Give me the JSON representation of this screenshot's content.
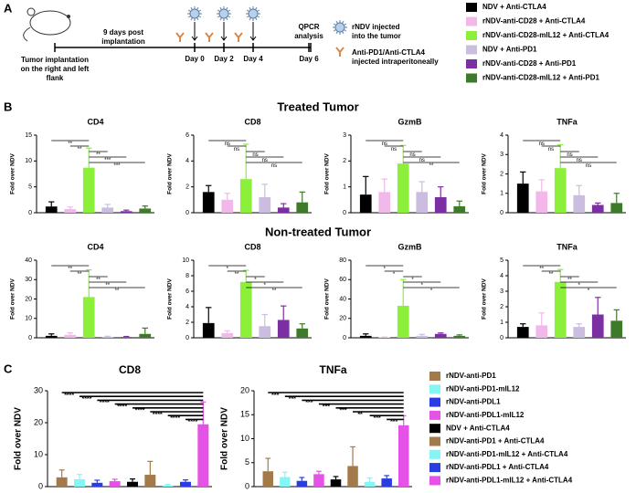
{
  "panel_labels": [
    "A",
    "B",
    "C"
  ],
  "schematic": {
    "implantation_label": [
      "Tumor implantation",
      "on the right and left",
      "flank"
    ],
    "interval_label": [
      "9 days post",
      "implantation"
    ],
    "days": [
      "Day 0",
      "Day 2",
      "Day 4",
      "Day 6"
    ],
    "analysis_label": [
      "QPCR",
      "analysis"
    ],
    "legend": [
      [
        "rNDV injected",
        "into the tumor"
      ],
      [
        "Anti-PD1/Anti-CTLA4",
        "injected intraperitoneally"
      ]
    ]
  },
  "section_titles": [
    "Treated Tumor",
    "Non-treated Tumor"
  ],
  "legend_b": [
    {
      "name": "NDV + Anti-CTLA4",
      "color": "#000000"
    },
    {
      "name": "rNDV-anti-CD28 + Anti-CTLA4",
      "color": "#f2b8ea"
    },
    {
      "name": "rNDV-anti-CD28-mIL12 + Anti-CTLA4",
      "color": "#8cf03a"
    },
    {
      "name": "NDV + Anti-PD1",
      "color": "#cbbde0"
    },
    {
      "name": "rNDV-anti-CD28 + Anti-PD1",
      "color": "#7b2fa3"
    },
    {
      "name": "rNDV-anti-CD28-mIL12 + Anti-PD1",
      "color": "#3d7a29"
    }
  ],
  "legend_c": [
    {
      "name": "rNDV-anti-PD1",
      "color": "#a57a4a"
    },
    {
      "name": "rNDV-anti-PD1-mIL12",
      "color": "#86f5f5"
    },
    {
      "name": "rNDV-anti-PDL1",
      "color": "#2a3de0"
    },
    {
      "name": "rNDV-anti-PDL1-mIL12",
      "color": "#e452e6"
    },
    {
      "name": "NDV + Anti-CTLA4",
      "color": "#000000"
    },
    {
      "name": "rNDV-anti-PD1 + Anti-CTLA4",
      "color": "#a57a4a"
    },
    {
      "name": "rNDV-anti-PD1-mIL12 + Anti-CTLA4",
      "color": "#86f5f5"
    },
    {
      "name": "rNDV-anti-PDL1 + Anti-CTLA4",
      "color": "#2a3de0"
    },
    {
      "name": "rNDV-anti-PDL1-mIL12 + Anti-CTLA4",
      "color": "#e452e6"
    }
  ],
  "chart_data": [
    {
      "type": "bar",
      "title": "CD4",
      "ylabel": "Fold over NDV",
      "values": [
        1.2,
        0.7,
        8.7,
        1.0,
        0.3,
        0.8
      ],
      "errors": [
        0.9,
        0.4,
        3.8,
        0.6,
        0.2,
        0.5
      ],
      "ylim": [
        0,
        15
      ],
      "yticks": [
        0,
        5,
        10,
        15
      ],
      "comparisons": [
        {
          "groups": [
            0,
            2
          ],
          "label": "**"
        },
        {
          "groups": [
            1,
            2
          ],
          "label": "**"
        },
        {
          "groups": [
            2,
            3
          ],
          "label": "**"
        },
        {
          "groups": [
            2,
            4
          ],
          "label": "***"
        },
        {
          "groups": [
            2,
            5
          ],
          "label": "***"
        }
      ]
    },
    {
      "type": "bar",
      "title": "CD8",
      "ylabel": "Fold over NDV",
      "values": [
        1.6,
        1.0,
        2.6,
        1.2,
        0.4,
        0.8
      ],
      "errors": [
        0.5,
        0.5,
        2.7,
        1.0,
        0.3,
        0.8
      ],
      "ylim": [
        0,
        6
      ],
      "yticks": [
        0,
        2,
        4,
        6
      ],
      "comparisons": [
        {
          "groups": [
            0,
            2
          ],
          "label": "ns"
        },
        {
          "groups": [
            1,
            2
          ],
          "label": "ns"
        },
        {
          "groups": [
            2,
            3
          ],
          "label": "ns"
        },
        {
          "groups": [
            2,
            4
          ],
          "label": "ns"
        },
        {
          "groups": [
            2,
            5
          ],
          "label": "ns"
        }
      ]
    },
    {
      "type": "bar",
      "title": "GzmB",
      "ylabel": "Fold over NDV",
      "values": [
        0.7,
        0.8,
        1.9,
        0.8,
        0.6,
        0.25
      ],
      "errors": [
        0.7,
        0.5,
        0.7,
        0.4,
        0.4,
        0.2
      ],
      "ylim": [
        0,
        3
      ],
      "yticks": [
        0,
        1,
        2,
        3
      ],
      "comparisons": [
        {
          "groups": [
            0,
            2
          ],
          "label": "ns"
        },
        {
          "groups": [
            1,
            2
          ],
          "label": "ns"
        },
        {
          "groups": [
            2,
            3
          ],
          "label": "ns"
        },
        {
          "groups": [
            2,
            4
          ],
          "label": "ns"
        },
        {
          "groups": [
            2,
            5
          ],
          "label": "**"
        }
      ]
    },
    {
      "type": "bar",
      "title": "TNFa",
      "ylabel": "Fold over NDV",
      "values": [
        1.5,
        1.1,
        2.3,
        0.9,
        0.4,
        0.5
      ],
      "errors": [
        0.6,
        0.6,
        1.2,
        0.5,
        0.1,
        0.5
      ],
      "ylim": [
        0,
        4
      ],
      "yticks": [
        0,
        1,
        2,
        3,
        4
      ],
      "comparisons": [
        {
          "groups": [
            0,
            2
          ],
          "label": "ns"
        },
        {
          "groups": [
            1,
            2
          ],
          "label": "ns"
        },
        {
          "groups": [
            2,
            3
          ],
          "label": "ns"
        },
        {
          "groups": [
            2,
            4
          ],
          "label": "ns"
        },
        {
          "groups": [
            2,
            5
          ],
          "label": "ns"
        }
      ]
    },
    {
      "type": "bar",
      "title": "CD4",
      "ylabel": "Fold over NDV",
      "values": [
        1.0,
        1.5,
        21,
        0.5,
        0.4,
        2.0
      ],
      "errors": [
        1.0,
        1.0,
        14,
        0.3,
        0.3,
        3.0
      ],
      "ylim": [
        0,
        40
      ],
      "yticks": [
        0,
        10,
        20,
        30,
        40
      ],
      "comparisons": [
        {
          "groups": [
            0,
            2
          ],
          "label": "**"
        },
        {
          "groups": [
            1,
            2
          ],
          "label": "**"
        },
        {
          "groups": [
            2,
            3
          ],
          "label": "**"
        },
        {
          "groups": [
            2,
            4
          ],
          "label": "**"
        },
        {
          "groups": [
            2,
            5
          ],
          "label": "**"
        }
      ]
    },
    {
      "type": "bar",
      "title": "CD8",
      "ylabel": "Fold over NDV",
      "values": [
        1.9,
        0.6,
        7.2,
        1.5,
        2.3,
        1.2
      ],
      "errors": [
        2.0,
        0.3,
        1.5,
        1.5,
        1.8,
        0.6
      ],
      "ylim": [
        0,
        10
      ],
      "yticks": [
        0,
        2,
        4,
        6,
        8,
        10
      ],
      "comparisons": [
        {
          "groups": [
            0,
            2
          ],
          "label": "*"
        },
        {
          "groups": [
            1,
            2
          ],
          "label": "**"
        },
        {
          "groups": [
            2,
            3
          ],
          "label": "*"
        },
        {
          "groups": [
            2,
            4
          ],
          "label": "*"
        },
        {
          "groups": [
            2,
            5
          ],
          "label": "**"
        }
      ]
    },
    {
      "type": "bar",
      "title": "GzmB",
      "ylabel": "Fold over NDV",
      "values": [
        2.0,
        0.5,
        33,
        2.0,
        4.0,
        2.0
      ],
      "errors": [
        2.0,
        0.3,
        27,
        1.5,
        1.0,
        1.0
      ],
      "ylim": [
        0,
        80
      ],
      "yticks": [
        0,
        20,
        40,
        60,
        80
      ],
      "comparisons": [
        {
          "groups": [
            0,
            2
          ],
          "label": "*"
        },
        {
          "groups": [
            1,
            2
          ],
          "label": "*"
        },
        {
          "groups": [
            2,
            3
          ],
          "label": "*"
        },
        {
          "groups": [
            2,
            4
          ],
          "label": "*"
        },
        {
          "groups": [
            2,
            5
          ],
          "label": "*"
        }
      ]
    },
    {
      "type": "bar",
      "title": "TNFa",
      "ylabel": "Fold over NDV",
      "values": [
        0.7,
        0.8,
        3.6,
        0.7,
        1.5,
        1.1
      ],
      "errors": [
        0.2,
        0.8,
        0.8,
        0.2,
        1.1,
        0.7
      ],
      "ylim": [
        0,
        5
      ],
      "yticks": [
        0,
        1,
        2,
        3,
        4,
        5
      ],
      "comparisons": [
        {
          "groups": [
            0,
            2
          ],
          "label": "**"
        },
        {
          "groups": [
            1,
            2
          ],
          "label": "**"
        },
        {
          "groups": [
            2,
            3
          ],
          "label": "**"
        },
        {
          "groups": [
            2,
            4
          ],
          "label": "*"
        },
        {
          "groups": [
            2,
            5
          ],
          "label": "*"
        }
      ]
    },
    {
      "type": "bar",
      "title": "CD8",
      "ylabel": "Fold over NDV",
      "values": [
        2.9,
        2.3,
        1.2,
        1.7,
        1.5,
        3.7,
        0.4,
        1.5,
        19.5
      ],
      "errors": [
        2.3,
        1.5,
        0.8,
        0.6,
        0.9,
        4.2,
        0.3,
        0.6,
        7.0
      ],
      "ylim": [
        0,
        30
      ],
      "yticks": [
        0,
        10,
        20,
        30
      ],
      "comparisons": [
        {
          "groups": [
            0,
            8
          ],
          "label": "****"
        },
        {
          "groups": [
            1,
            8
          ],
          "label": "****"
        },
        {
          "groups": [
            2,
            8
          ],
          "label": "****"
        },
        {
          "groups": [
            3,
            8
          ],
          "label": "****"
        },
        {
          "groups": [
            4,
            8
          ],
          "label": "****"
        },
        {
          "groups": [
            5,
            8
          ],
          "label": "****"
        },
        {
          "groups": [
            6,
            8
          ],
          "label": "****"
        },
        {
          "groups": [
            7,
            8
          ],
          "label": "****"
        }
      ]
    },
    {
      "type": "bar",
      "title": "TNFa",
      "ylabel": "Fold over NDV",
      "values": [
        3.2,
        2.0,
        1.2,
        2.6,
        1.5,
        4.3,
        1.0,
        1.7,
        12.8
      ],
      "errors": [
        2.7,
        1.0,
        0.7,
        0.6,
        0.6,
        4.0,
        0.8,
        0.6,
        2.0
      ],
      "ylim": [
        0,
        20
      ],
      "yticks": [
        0,
        5,
        10,
        15,
        20
      ],
      "comparisons": [
        {
          "groups": [
            0,
            8
          ],
          "label": "***"
        },
        {
          "groups": [
            1,
            8
          ],
          "label": "***"
        },
        {
          "groups": [
            2,
            8
          ],
          "label": "***"
        },
        {
          "groups": [
            3,
            8
          ],
          "label": "***"
        },
        {
          "groups": [
            4,
            8
          ],
          "label": "***"
        },
        {
          "groups": [
            5,
            8
          ],
          "label": "**"
        },
        {
          "groups": [
            6,
            8
          ],
          "label": "***"
        },
        {
          "groups": [
            7,
            8
          ],
          "label": "***"
        }
      ]
    }
  ]
}
